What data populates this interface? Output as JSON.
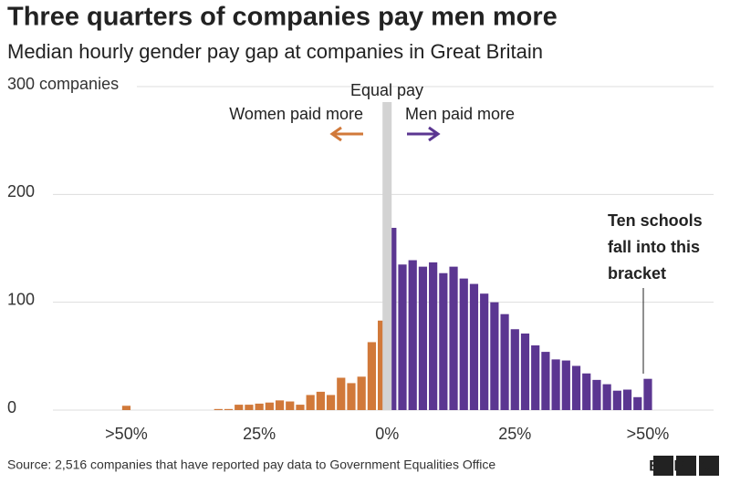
{
  "chart_data": {
    "type": "histogram",
    "title": "Three quarters of companies pay men more",
    "subtitle": "Median hourly gender pay gap at companies in Great Britain",
    "series": [
      {
        "name": "Women paid more",
        "color": "#d1793a",
        "bins": [
          -52,
          -50,
          -48,
          -46,
          -44,
          -42,
          -40,
          -38,
          -36,
          -34,
          -32,
          -30,
          -28,
          -26,
          -24,
          -22,
          -20,
          -18,
          -16,
          -14,
          -12,
          -10,
          -8,
          -6,
          -4,
          -2,
          0
        ],
        "values": [
          4,
          0,
          0,
          0,
          0,
          0,
          0,
          0,
          0,
          1,
          1,
          5,
          5,
          6,
          7,
          9,
          8,
          5,
          14,
          17,
          14,
          30,
          25,
          31,
          63,
          83
        ]
      },
      {
        "name": "Men paid more",
        "color": "#5b3691",
        "bins": [
          0,
          2,
          4,
          6,
          8,
          10,
          12,
          14,
          16,
          18,
          20,
          22,
          24,
          26,
          28,
          30,
          32,
          34,
          36,
          38,
          40,
          42,
          44,
          46,
          48,
          50,
          52
        ],
        "values": [
          169,
          135,
          139,
          133,
          137,
          127,
          133,
          122,
          117,
          108,
          100,
          89,
          75,
          71,
          60,
          54,
          47,
          46,
          41,
          34,
          28,
          24,
          18,
          19,
          12,
          29
        ]
      }
    ],
    "xlim": [
      -70,
      66
    ],
    "xticks": [
      {
        "value": -51,
        "label": ">50%"
      },
      {
        "value": -25,
        "label": "25%"
      },
      {
        "value": 0,
        "label": "0%"
      },
      {
        "value": 25,
        "label": "25%"
      },
      {
        "value": 51,
        "label": ">50%"
      }
    ],
    "ylim": [
      0,
      300
    ],
    "yticks": [
      0,
      100,
      200,
      {
        "value": 300,
        "label": "300 companies"
      }
    ],
    "grid": true,
    "equal_line": {
      "label": "Equal pay",
      "value": 0,
      "color": "#d3d3d3"
    },
    "annotation": [
      "Ten schools",
      "fall into this",
      "bracket"
    ],
    "source": "Source: 2,516 companies that have reported pay data to Government Equalities Office",
    "logo": "BBC"
  }
}
